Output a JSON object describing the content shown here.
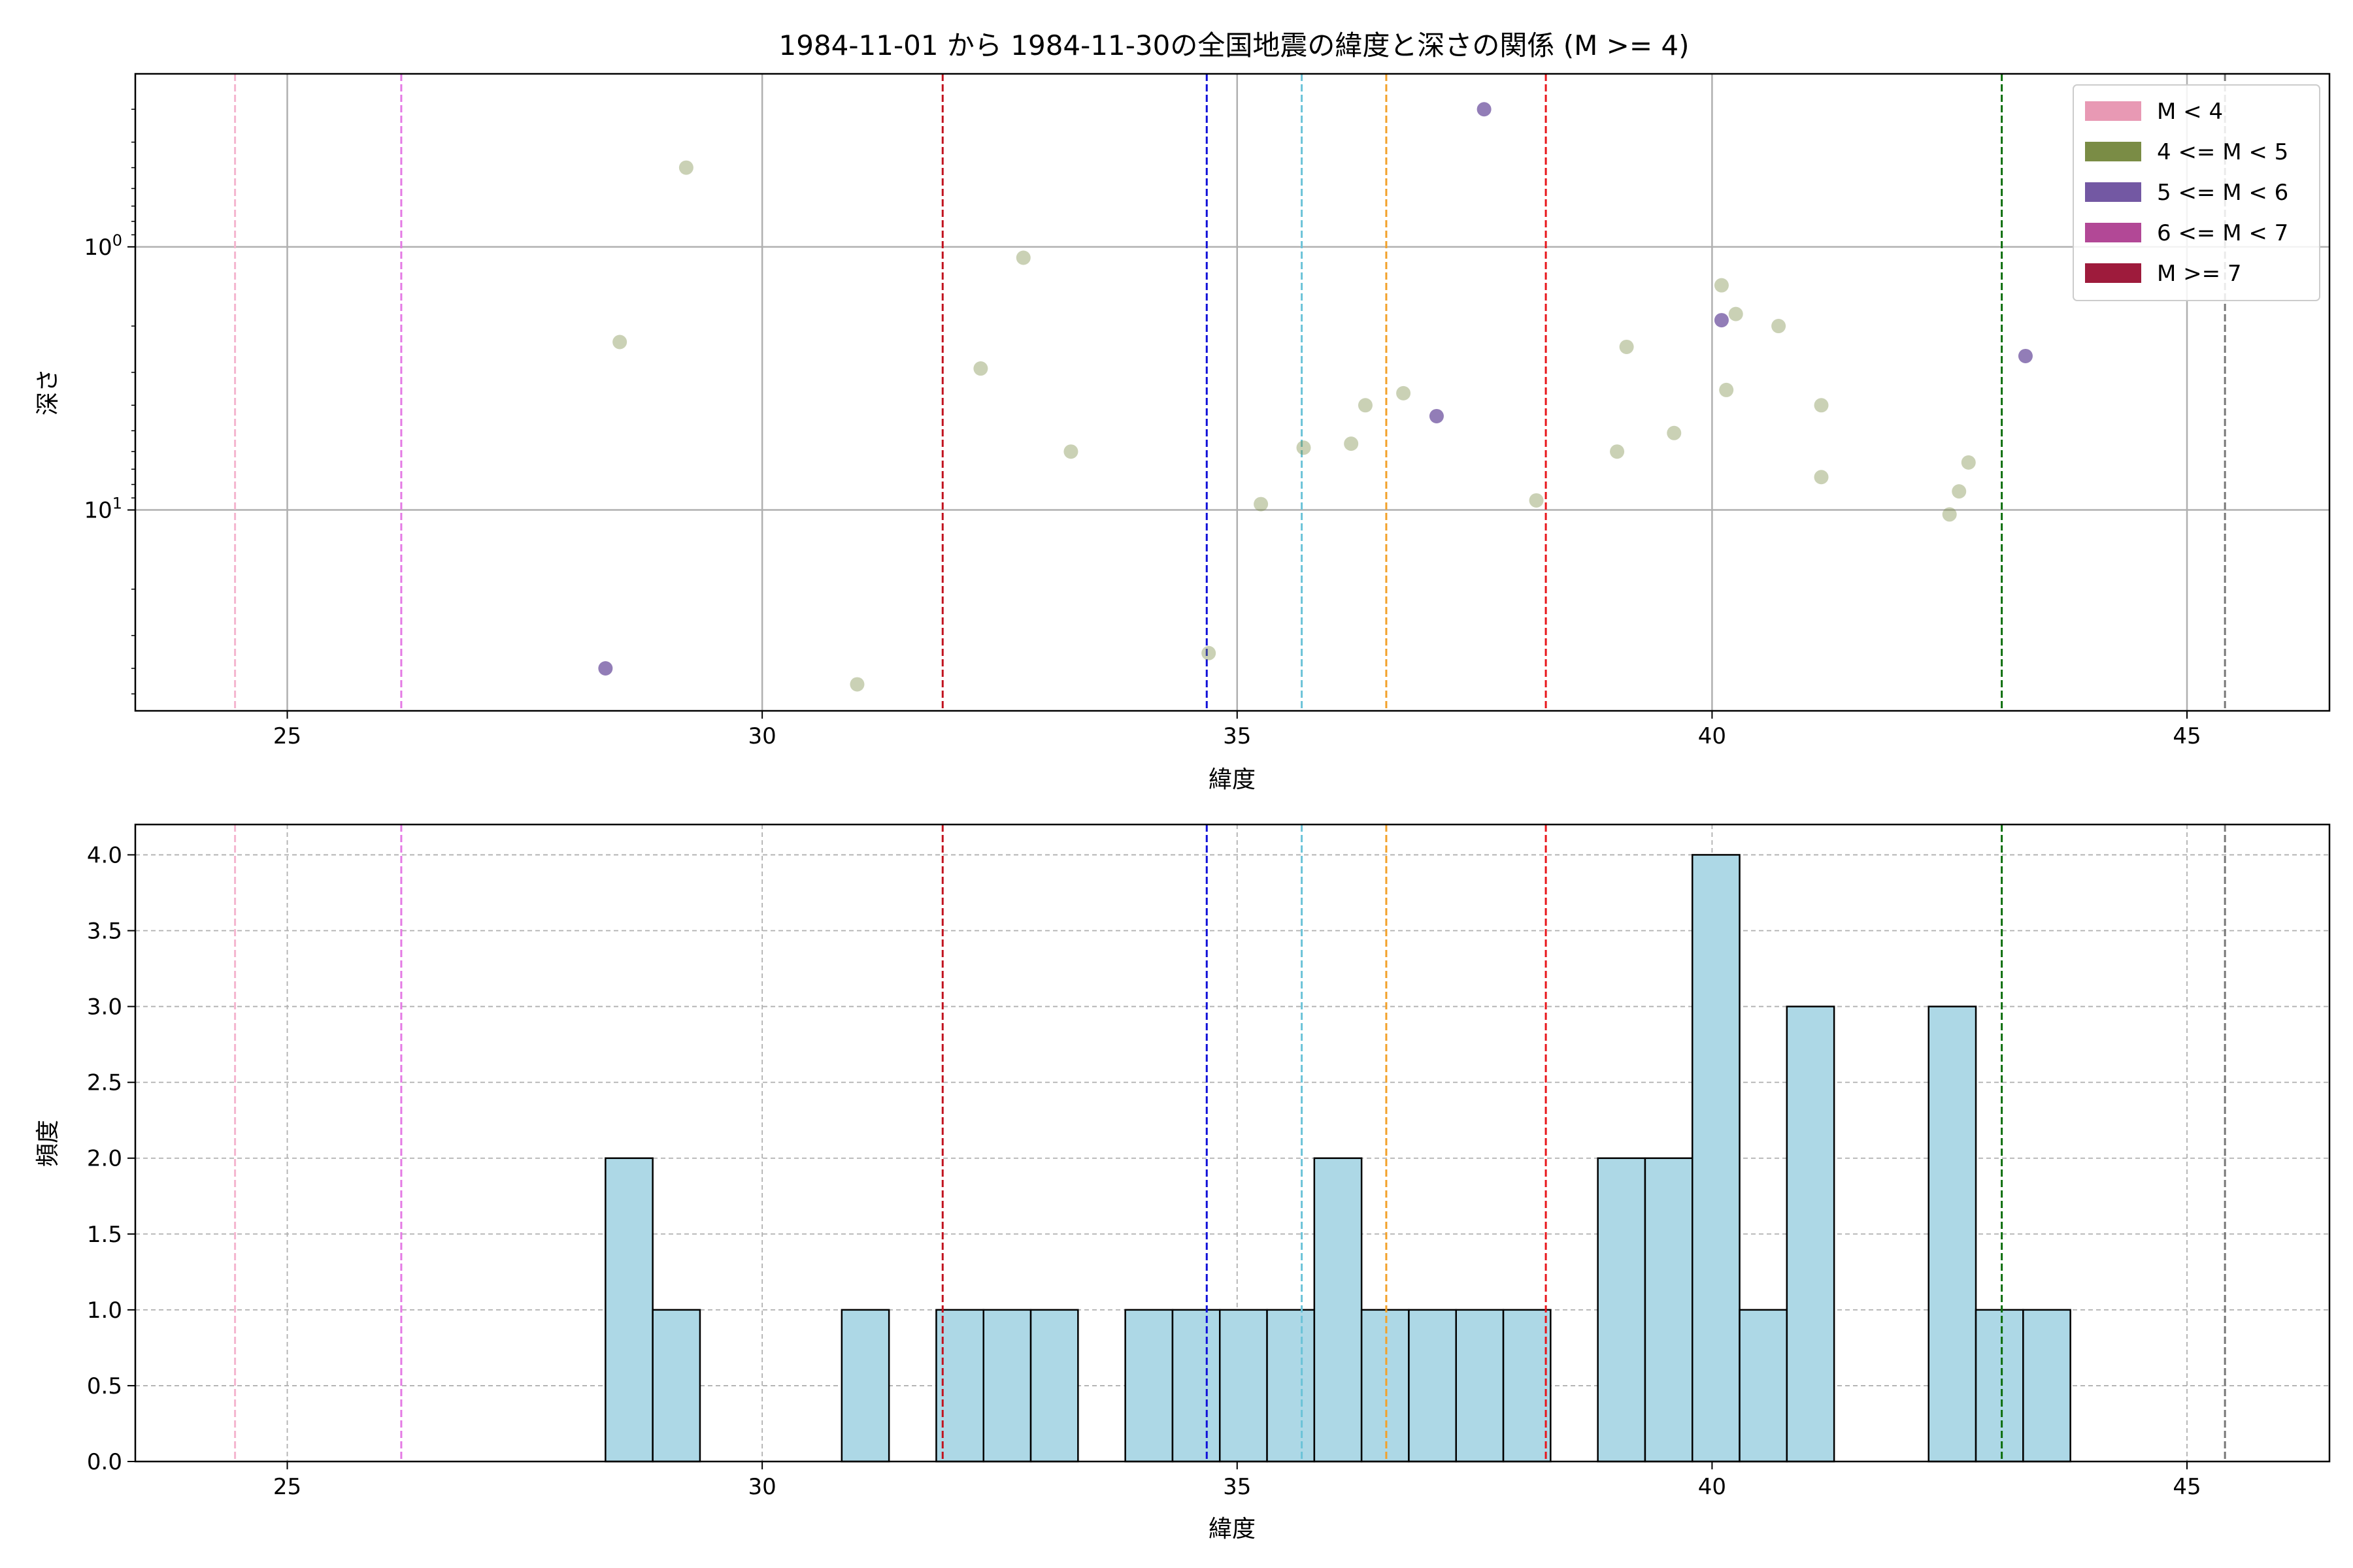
{
  "title": "1984-11-01 から 1984-11-30の全国地震の緯度と深さの関係 (M >= 4)",
  "chart_data": [
    {
      "type": "scatter",
      "xlabel": "緯度",
      "ylabel": "深さ",
      "xlim": [
        23.4,
        46.5
      ],
      "ylim": [
        58,
        0.22
      ],
      "yscale": "log",
      "y_inverted": true,
      "grid": true,
      "x_ticks": [
        25,
        30,
        35,
        40,
        45
      ],
      "y_ticks": [
        {
          "value": 1,
          "base": "10",
          "exp": "0"
        },
        {
          "value": 10,
          "base": "10",
          "exp": "1"
        }
      ],
      "legend_position": "top-right",
      "legend": [
        {
          "label": "M < 4",
          "color": "#e899b4"
        },
        {
          "label": "4 <= M < 5",
          "color": "#7a8c45"
        },
        {
          "label": "5 <= M < 6",
          "color": "#7358a3"
        },
        {
          "label": "6 <= M < 7",
          "color": "#b24896"
        },
        {
          "label": "M >= 7",
          "color": "#9e1b3c"
        }
      ],
      "points": [
        {
          "x": 29.2,
          "y": 0.5,
          "class": "4 <= M < 5"
        },
        {
          "x": 28.5,
          "y": 2.3,
          "class": "4 <= M < 5"
        },
        {
          "x": 28.35,
          "y": 40,
          "class": "5 <= M < 6"
        },
        {
          "x": 31.0,
          "y": 46,
          "class": "4 <= M < 5"
        },
        {
          "x": 32.3,
          "y": 2.9,
          "class": "4 <= M < 5"
        },
        {
          "x": 32.75,
          "y": 1.1,
          "class": "4 <= M < 5"
        },
        {
          "x": 33.25,
          "y": 6.0,
          "class": "4 <= M < 5"
        },
        {
          "x": 34.7,
          "y": 35,
          "class": "4 <= M < 5"
        },
        {
          "x": 35.25,
          "y": 9.5,
          "class": "4 <= M < 5"
        },
        {
          "x": 35.7,
          "y": 5.8,
          "class": "4 <= M < 5"
        },
        {
          "x": 36.2,
          "y": 5.6,
          "class": "4 <= M < 5"
        },
        {
          "x": 36.35,
          "y": 4.0,
          "class": "4 <= M < 5"
        },
        {
          "x": 36.75,
          "y": 3.6,
          "class": "4 <= M < 5"
        },
        {
          "x": 37.1,
          "y": 4.4,
          "class": "5 <= M < 6"
        },
        {
          "x": 37.6,
          "y": 0.3,
          "class": "5 <= M < 6"
        },
        {
          "x": 38.15,
          "y": 9.2,
          "class": "4 <= M < 5"
        },
        {
          "x": 39.0,
          "y": 6.0,
          "class": "4 <= M < 5"
        },
        {
          "x": 39.1,
          "y": 2.4,
          "class": "4 <= M < 5"
        },
        {
          "x": 39.6,
          "y": 5.1,
          "class": "4 <= M < 5"
        },
        {
          "x": 40.1,
          "y": 1.4,
          "class": "4 <= M < 5"
        },
        {
          "x": 40.1,
          "y": 1.9,
          "class": "5 <= M < 6"
        },
        {
          "x": 40.15,
          "y": 3.5,
          "class": "4 <= M < 5"
        },
        {
          "x": 40.25,
          "y": 1.8,
          "class": "4 <= M < 5"
        },
        {
          "x": 40.7,
          "y": 2.0,
          "class": "4 <= M < 5"
        },
        {
          "x": 41.15,
          "y": 4.0,
          "class": "4 <= M < 5"
        },
        {
          "x": 41.15,
          "y": 7.5,
          "class": "4 <= M < 5"
        },
        {
          "x": 42.5,
          "y": 10.4,
          "class": "4 <= M < 5"
        },
        {
          "x": 42.6,
          "y": 8.5,
          "class": "4 <= M < 5"
        },
        {
          "x": 42.7,
          "y": 6.6,
          "class": "4 <= M < 5"
        },
        {
          "x": 43.3,
          "y": 2.6,
          "class": "5 <= M < 6"
        }
      ],
      "vlines": [
        {
          "x": 24.45,
          "color": "#f4b6cf"
        },
        {
          "x": 26.2,
          "color": "#e47ae4"
        },
        {
          "x": 31.9,
          "color": "#c1121f"
        },
        {
          "x": 34.68,
          "color": "#1010d8"
        },
        {
          "x": 35.68,
          "color": "#6cc3d8"
        },
        {
          "x": 36.57,
          "color": "#f2a12a"
        },
        {
          "x": 38.25,
          "color": "#e8151b"
        },
        {
          "x": 43.05,
          "color": "#0d6e0d"
        },
        {
          "x": 45.4,
          "color": "#777777"
        }
      ]
    },
    {
      "type": "bar",
      "xlabel": "緯度",
      "ylabel": "頻度",
      "xlim": [
        23.4,
        46.5
      ],
      "ylim": [
        0,
        4.2
      ],
      "grid": true,
      "x_ticks": [
        25,
        30,
        35,
        40,
        45
      ],
      "y_ticks": [
        "0.0",
        "0.5",
        "1.0",
        "1.5",
        "2.0",
        "2.5",
        "3.0",
        "3.5",
        "4.0"
      ],
      "bin_start": 28.35,
      "bin_width": 0.4975,
      "bar_color": "#add8e6",
      "edge_color": "#000000",
      "counts": [
        2,
        1,
        0,
        0,
        0,
        1,
        0,
        1,
        1,
        1,
        0,
        1,
        1,
        1,
        1,
        2,
        1,
        1,
        1,
        1,
        0,
        2,
        2,
        4,
        1,
        3,
        0,
        0,
        3,
        1,
        1
      ],
      "vlines": [
        {
          "x": 24.45,
          "color": "#f4b6cf"
        },
        {
          "x": 26.2,
          "color": "#e47ae4"
        },
        {
          "x": 31.9,
          "color": "#c1121f"
        },
        {
          "x": 34.68,
          "color": "#1010d8"
        },
        {
          "x": 35.68,
          "color": "#6cc3d8"
        },
        {
          "x": 36.57,
          "color": "#f2a12a"
        },
        {
          "x": 38.25,
          "color": "#e8151b"
        },
        {
          "x": 43.05,
          "color": "#0d6e0d"
        },
        {
          "x": 45.4,
          "color": "#777777"
        }
      ]
    }
  ]
}
